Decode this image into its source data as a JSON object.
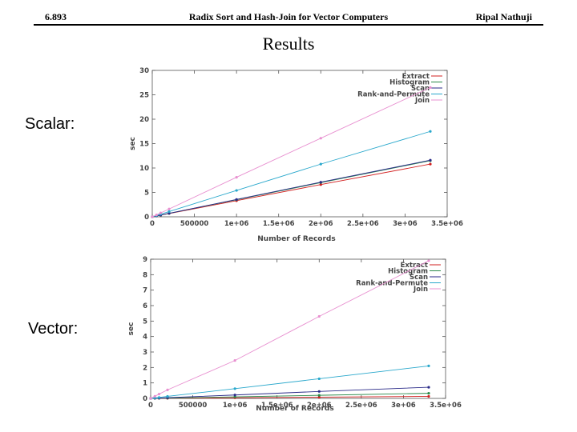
{
  "header": {
    "left": "6.893",
    "center": "Radix Sort and Hash-Join for Vector Computers",
    "right": "Ripal Nathuji"
  },
  "slide_title": "Results",
  "labels": {
    "scalar": "Scalar:",
    "vector": "Vector:"
  },
  "chart_data": [
    {
      "type": "line",
      "xlabel": "Number of Records",
      "ylabel": "sec",
      "xlim": [
        0,
        3500000
      ],
      "ylim": [
        0,
        30
      ],
      "xticks": [
        0,
        500000,
        1000000,
        1500000,
        2000000,
        2500000,
        3000000,
        3500000
      ],
      "xtick_labels": [
        "0",
        "500000",
        "1e+06",
        "1.5e+06",
        "2e+06",
        "2.5e+06",
        "3e+06",
        "3.5e+06"
      ],
      "yticks": [
        0,
        5,
        10,
        15,
        20,
        25,
        30
      ],
      "ytick_labels": [
        "0",
        "5",
        "10",
        "15",
        "20",
        "25",
        "30"
      ],
      "legend_position": "top-right",
      "x": [
        0,
        50000,
        100000,
        200000,
        1000000,
        2000000,
        3300000
      ],
      "series": [
        {
          "name": "Extract",
          "color": "#d22020",
          "values": [
            0,
            0.17,
            0.33,
            0.67,
            3.3,
            6.6,
            10.8
          ]
        },
        {
          "name": "Histogram",
          "color": "#2a8a4a",
          "values": [
            0,
            0.18,
            0.35,
            0.7,
            3.5,
            7.0,
            11.5
          ]
        },
        {
          "name": "Scan",
          "color": "#2a2a88",
          "values": [
            0,
            0.18,
            0.35,
            0.71,
            3.55,
            7.1,
            11.6
          ]
        },
        {
          "name": "Rank-and-Permute",
          "color": "#2aa8cc",
          "values": [
            0,
            0.27,
            0.54,
            1.08,
            5.4,
            10.8,
            17.5
          ]
        },
        {
          "name": "Join",
          "color": "#e890d0",
          "values": [
            0,
            0.4,
            0.8,
            1.6,
            8.1,
            16.1,
            26.5
          ]
        }
      ]
    },
    {
      "type": "line",
      "xlabel": "Number of Records",
      "ylabel": "sec",
      "xlim": [
        0,
        3500000
      ],
      "ylim": [
        0,
        9
      ],
      "xticks": [
        0,
        500000,
        1000000,
        1500000,
        2000000,
        2500000,
        3000000,
        3500000
      ],
      "xtick_labels": [
        "0",
        "500000",
        "1e+06",
        "1.5e+06",
        "2e+06",
        "2.5e+06",
        "3e+06",
        "3.5e+06"
      ],
      "yticks": [
        0,
        1,
        2,
        3,
        4,
        5,
        6,
        7,
        8,
        9
      ],
      "ytick_labels": [
        "0",
        "1",
        "2",
        "3",
        "4",
        "5",
        "6",
        "7",
        "8",
        "9"
      ],
      "legend_position": "top-right",
      "x": [
        0,
        50000,
        100000,
        200000,
        1000000,
        2000000,
        3300000
      ],
      "series": [
        {
          "name": "Extract",
          "color": "#d22020",
          "values": [
            0,
            0.002,
            0.004,
            0.008,
            0.04,
            0.08,
            0.13
          ]
        },
        {
          "name": "Histogram",
          "color": "#2a8a4a",
          "values": [
            0,
            0.005,
            0.01,
            0.02,
            0.1,
            0.2,
            0.33
          ]
        },
        {
          "name": "Scan",
          "color": "#2a2a88",
          "values": [
            0,
            0.01,
            0.02,
            0.045,
            0.22,
            0.45,
            0.72
          ]
        },
        {
          "name": "Rank-and-Permute",
          "color": "#2aa8cc",
          "values": [
            0,
            0.03,
            0.06,
            0.13,
            0.63,
            1.27,
            2.1
          ]
        },
        {
          "name": "Join",
          "color": "#e890d0",
          "values": [
            0,
            0.14,
            0.28,
            0.55,
            2.45,
            5.3,
            8.9
          ]
        }
      ]
    }
  ]
}
